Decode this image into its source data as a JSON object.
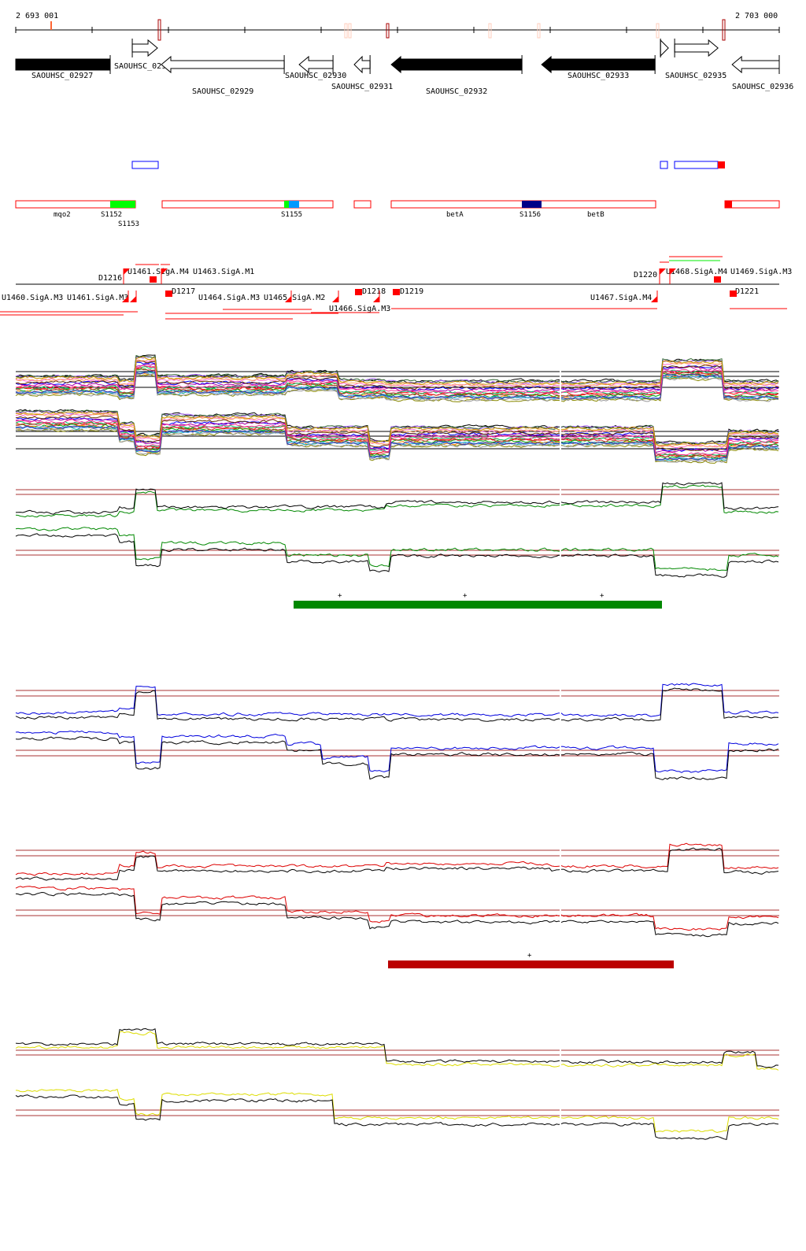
{
  "ruler": {
    "start_label": "2 693 001",
    "end_label": "2 703 000",
    "start_bp": 2693001,
    "end_bp": 2703000
  },
  "genes": [
    {
      "name": "SAOUHSC_02927",
      "start": 2693001,
      "end": 2694238,
      "strand": "-",
      "filled": true
    },
    {
      "name": "SAOUHSC_02928",
      "start": 2694527,
      "end": 2694857,
      "strand": "+",
      "filled": false
    },
    {
      "name": "SAOUHSC_02929",
      "start": 2694908,
      "end": 2696517,
      "strand": "-",
      "filled": false
    },
    {
      "name": "SAOUHSC_02930",
      "start": 2696713,
      "end": 2697156,
      "strand": "-",
      "filled": false
    },
    {
      "name": "SAOUHSC_02931",
      "start": 2697434,
      "end": 2697641,
      "strand": "-",
      "filled": false
    },
    {
      "name": "SAOUHSC_02932",
      "start": 2697919,
      "end": 2699630,
      "strand": "-",
      "filled": true
    },
    {
      "name": "SAOUHSC_02933",
      "start": 2699888,
      "end": 2701373,
      "strand": "-",
      "filled": true
    },
    {
      "name": "",
      "start": 2701445,
      "end": 2701548,
      "strand": "+",
      "filled": false
    },
    {
      "name": "SAOUHSC_02935",
      "start": 2701630,
      "end": 2702198,
      "strand": "+",
      "filled": false
    },
    {
      "name": "SAOUHSC_02936",
      "start": 2702383,
      "end": 2703000,
      "strand": "-",
      "filled": false
    }
  ],
  "features": {
    "labels": [
      "mqo2",
      "S1152",
      "S1153",
      "S1155",
      "betA",
      "S1156",
      "betB"
    ],
    "colors": {
      "outline": "#ff0000",
      "green": "#00ff00",
      "blue": "#0099ff",
      "navy": "#000088",
      "box_blue": "#0000ff"
    }
  },
  "transcripts": {
    "labels": [
      "U1461.SigA.M4",
      "U1463.SigA.M1",
      "D1216",
      "U1460.SigA.M3",
      "U1461.SigA.M3",
      "D1217",
      "U1464.SigA.M3",
      "U1465.SigA.M2",
      "U1466.SigA.M3",
      "D1218",
      "D1219",
      "U1467.SigA.M4",
      "U1468.SigA.M4",
      "U1469.SigA.M3",
      "D1220",
      "D1221"
    ],
    "color": "#ff0000"
  },
  "tracks": [
    {
      "colors": [
        "multi"
      ],
      "marks": []
    },
    {
      "colors": [
        "#008800",
        "#000000"
      ],
      "bar_color": "#008800",
      "marks": [
        "+",
        "+",
        "+"
      ]
    },
    {
      "colors": [
        "#0000dd",
        "#000000"
      ],
      "marks": []
    },
    {
      "colors": [
        "#dd0000",
        "#000000"
      ],
      "bar_color": "#bb0000",
      "marks": [
        "+"
      ]
    },
    {
      "colors": [
        "#dddd00",
        "#000000"
      ],
      "marks": []
    }
  ]
}
